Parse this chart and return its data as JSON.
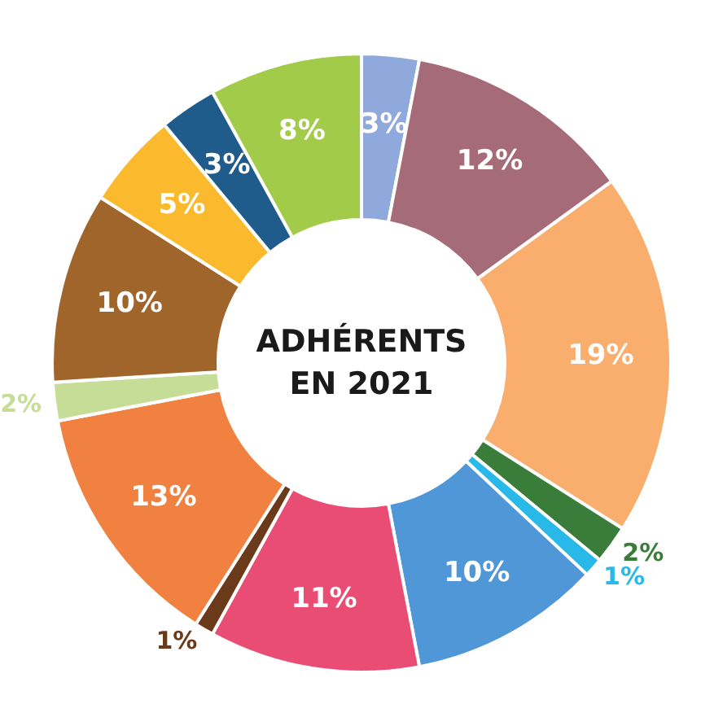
{
  "chart_data": {
    "type": "donut",
    "title": "ADHÉRENTS EN 2021",
    "categories": [
      null,
      null,
      null,
      null,
      null,
      null,
      null,
      null,
      null,
      null,
      null,
      null,
      null,
      null
    ],
    "values": [
      3,
      12,
      19,
      2,
      1,
      10,
      11,
      1,
      13,
      2,
      10,
      5,
      3,
      8
    ],
    "value_labels": [
      "3%",
      "12%",
      "19%",
      "2%",
      "1%",
      "10%",
      "11%",
      "1%",
      "13%",
      "2%",
      "10%",
      "5%",
      "3%",
      "8%"
    ],
    "colors": [
      "#8fa9dc",
      "#a66b78",
      "#f9ae6e",
      "#3a7d3a",
      "#29b9e8",
      "#4f97d6",
      "#e94d73",
      "#6b3a1a",
      "#f08141",
      "#c6dd98",
      "#a0652a",
      "#fbba2e",
      "#1f5b8b",
      "#a3cb4a"
    ]
  }
}
